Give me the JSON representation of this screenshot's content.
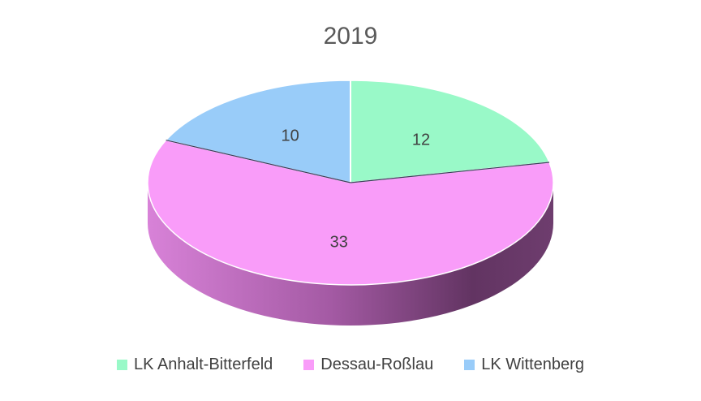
{
  "chart_data": {
    "type": "pie",
    "title": "2019",
    "categories": [
      "LK Anhalt-Bitterfeld",
      "Dessau-Roßlau",
      "LK Wittenberg"
    ],
    "values": [
      12,
      33,
      10
    ],
    "data_labels": [
      "12",
      "33",
      "10"
    ],
    "colors": [
      "#99f9c8",
      "#f99cf9",
      "#99ccf9"
    ],
    "style": "3d",
    "legend_position": "bottom"
  }
}
